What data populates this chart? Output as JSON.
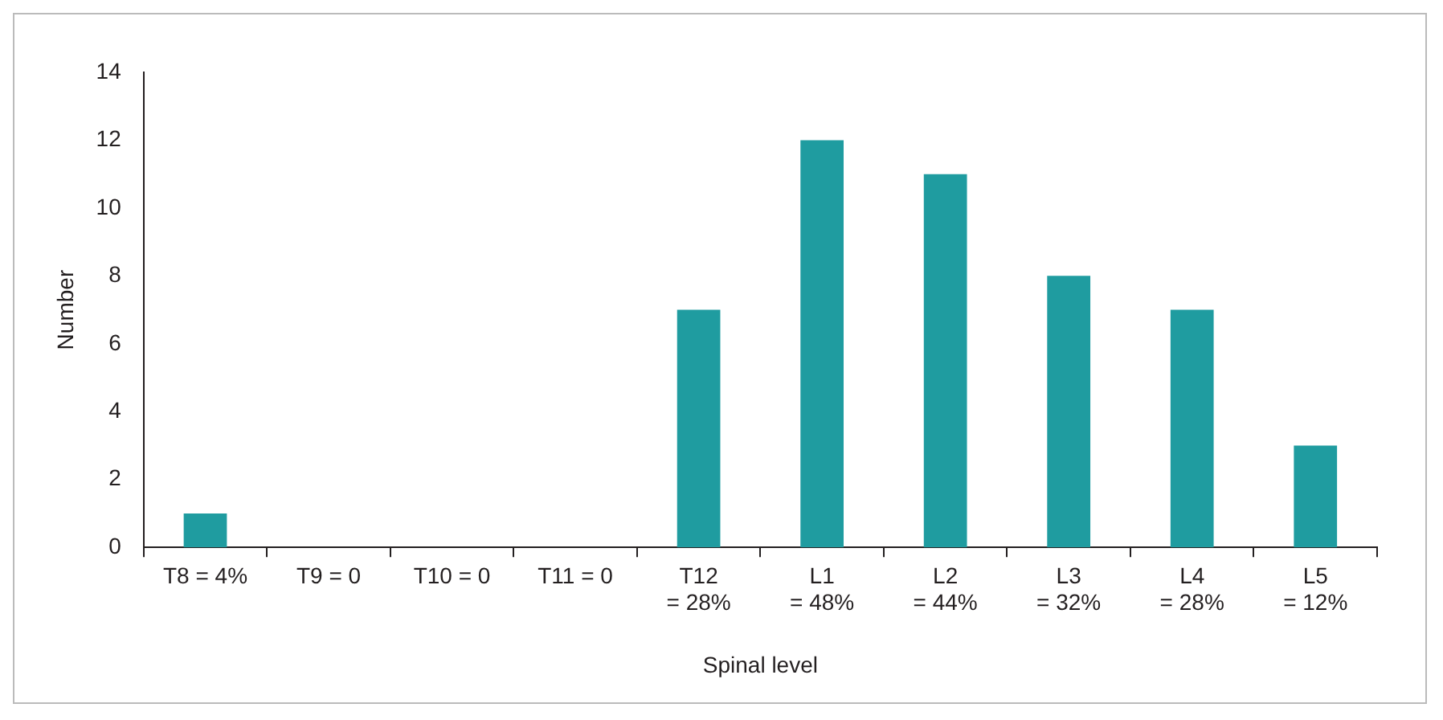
{
  "chart_data": {
    "type": "bar",
    "xlabel": "Spinal level",
    "ylabel": "Number",
    "categories": [
      "T8 = 4%",
      "T9 = 0",
      "T10 = 0",
      "T11 = 0",
      "T12\n= 28%",
      "L1\n= 48%",
      "L2\n= 44%",
      "L3\n= 32%",
      "L4\n= 28%",
      "L5\n= 12%"
    ],
    "values": [
      1,
      0,
      0,
      0,
      7,
      12,
      11,
      8,
      7,
      3
    ],
    "color": "#1f9ca0",
    "ylim": [
      0,
      14
    ],
    "yticks": [
      0,
      2,
      4,
      6,
      8,
      10,
      12,
      14
    ],
    "grid": false,
    "legend": false
  }
}
